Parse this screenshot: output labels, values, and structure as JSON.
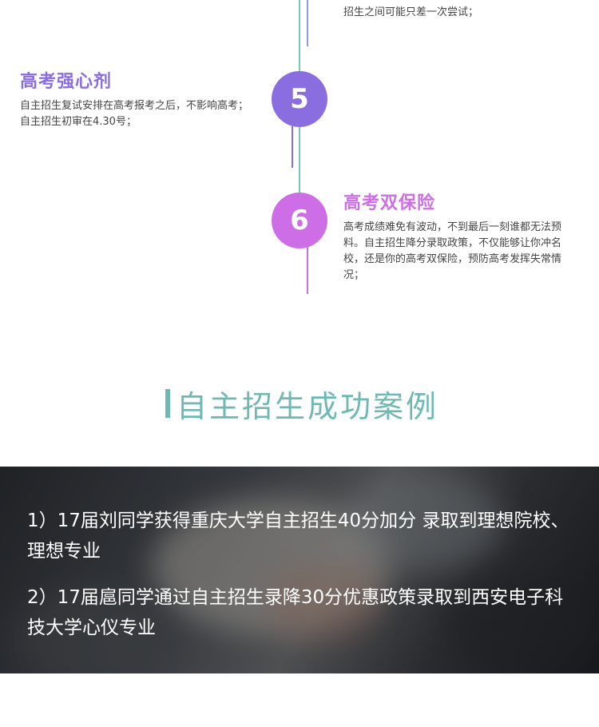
{
  "timeline": {
    "top_text": "招生之间可能只差一次尝试；",
    "items": [
      {
        "number": "5",
        "title": "高考强心剂",
        "desc": "自主招生复试安排在高考报考之后，不影响高考；自主招生初审在4.30号；",
        "color": "#8a6ee0"
      },
      {
        "number": "6",
        "title": "高考双保险",
        "desc": "高考成绩难免有波动，不到最后一刻谁都无法预料。自主招生降分录取政策，不仅能够让你冲名校，还是你的高考双保险，预防高考发挥失常情况；",
        "color": "#cd6ee6"
      }
    ]
  },
  "section": {
    "title": "自主招生成功案例",
    "accent": "#6fb9b2"
  },
  "cases": [
    "1）17届刘同学获得重庆大学自主招生40分加分 录取到理想院校、理想专业",
    "2）17届扈同学通过自主招生录降30分优惠政策录取到西安电子科技大学心仪专业"
  ]
}
